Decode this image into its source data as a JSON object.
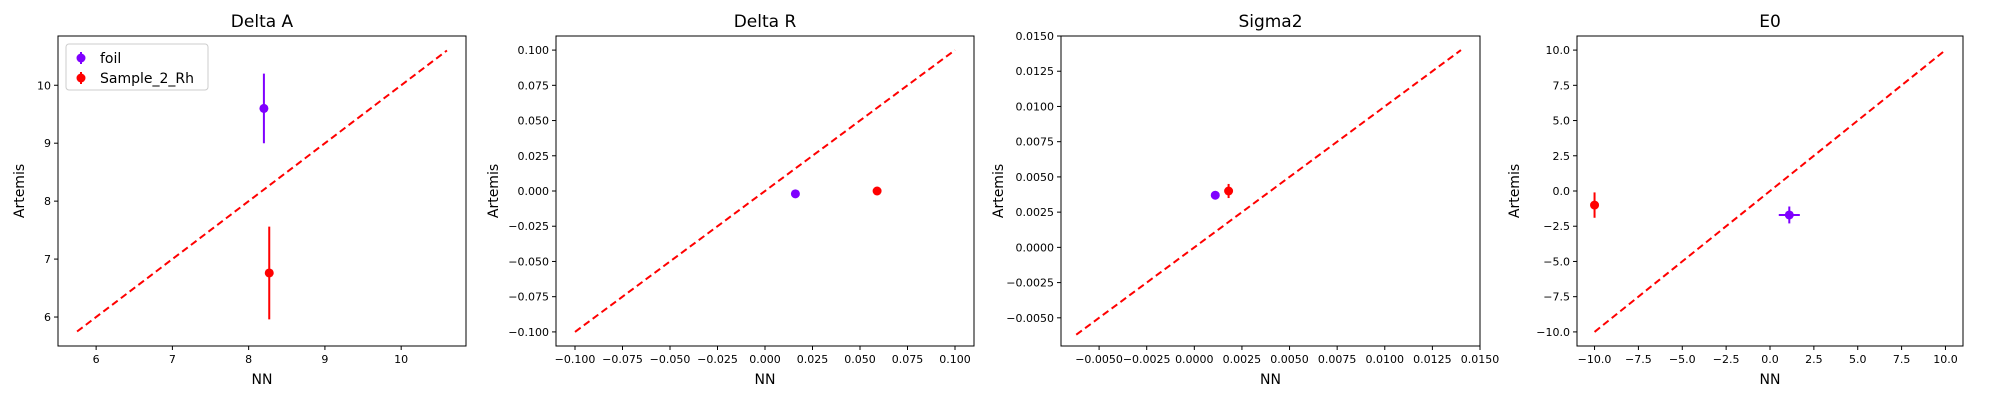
{
  "chart_data": [
    {
      "type": "scatter",
      "title": "Delta A",
      "xlabel": "NN",
      "ylabel": "Artemis",
      "xlim": [
        5.5,
        10.85
      ],
      "ylim": [
        5.5,
        10.85
      ],
      "xticks": [
        6,
        7,
        8,
        9,
        10
      ],
      "yticks": [
        6,
        7,
        8,
        9,
        10
      ],
      "tick_labels_x": [
        "6",
        "7",
        "8",
        "9",
        "10"
      ],
      "tick_labels_y": [
        "6",
        "7",
        "8",
        "9",
        "10"
      ],
      "diagonal": [
        5.75,
        10.6
      ],
      "legend": {
        "position": "top-left",
        "entries": [
          "foil",
          "Sample_2_Rh"
        ]
      },
      "series": [
        {
          "name": "foil",
          "color": "#7f00ff",
          "points": [
            {
              "x": 8.2,
              "y": 9.6,
              "xerr": 0.0,
              "yerr": 0.6
            }
          ]
        },
        {
          "name": "Sample_2_Rh",
          "color": "#ff0000",
          "points": [
            {
              "x": 8.27,
              "y": 6.76,
              "xerr": 0.0,
              "yerr": 0.8
            }
          ]
        }
      ]
    },
    {
      "type": "scatter",
      "title": "Delta R",
      "xlabel": "NN",
      "ylabel": "Artemis",
      "xlim": [
        -0.11,
        0.11
      ],
      "ylim": [
        -0.11,
        0.11
      ],
      "xticks": [
        -0.1,
        -0.075,
        -0.05,
        -0.025,
        0.0,
        0.025,
        0.05,
        0.075,
        0.1
      ],
      "yticks": [
        -0.1,
        -0.075,
        -0.05,
        -0.025,
        0.0,
        0.025,
        0.05,
        0.075,
        0.1
      ],
      "tick_labels_x": [
        "−0.100",
        "−0.075",
        "−0.050",
        "−0.025",
        "0.000",
        "0.025",
        "0.050",
        "0.075",
        "0.100"
      ],
      "tick_labels_y": [
        "−0.100",
        "−0.075",
        "−0.050",
        "−0.025",
        "0.000",
        "0.025",
        "0.050",
        "0.075",
        "0.100"
      ],
      "diagonal": [
        -0.1,
        0.1
      ],
      "series": [
        {
          "color": "#7f00ff",
          "points": [
            {
              "x": 0.016,
              "y": -0.002,
              "xerr": 0.0,
              "yerr": 0.0
            }
          ]
        },
        {
          "color": "#ff0000",
          "points": [
            {
              "x": 0.059,
              "y": 0.0,
              "xerr": 0.0015,
              "yerr": 0.002
            }
          ]
        }
      ]
    },
    {
      "type": "scatter",
      "title": "Sigma2",
      "xlabel": "NN",
      "ylabel": "Artemis",
      "xlim": [
        -0.007,
        0.015
      ],
      "ylim": [
        -0.007,
        0.015
      ],
      "xticks": [
        -0.005,
        -0.0025,
        0.0,
        0.0025,
        0.005,
        0.0075,
        0.01,
        0.0125,
        0.015
      ],
      "yticks": [
        -0.005,
        -0.0025,
        0.0,
        0.0025,
        0.005,
        0.0075,
        0.01,
        0.0125,
        0.015
      ],
      "tick_labels_x": [
        "−0.0050",
        "−0.0025",
        "0.0000",
        "0.0025",
        "0.0050",
        "0.0075",
        "0.0100",
        "0.0125",
        "0.0150"
      ],
      "tick_labels_y": [
        "−0.0050",
        "−0.0025",
        "0.0000",
        "0.0025",
        "0.0050",
        "0.0075",
        "0.0100",
        "0.0125",
        "0.0150"
      ],
      "diagonal": [
        -0.0062,
        0.014
      ],
      "series": [
        {
          "color": "#7f00ff",
          "points": [
            {
              "x": 0.0011,
              "y": 0.0037,
              "xerr": 0.0,
              "yerr": 0.0
            }
          ]
        },
        {
          "color": "#ff0000",
          "points": [
            {
              "x": 0.0018,
              "y": 0.004,
              "xerr": 0.0,
              "yerr": 0.0005
            }
          ]
        }
      ]
    },
    {
      "type": "scatter",
      "title": "E0",
      "xlabel": "NN",
      "ylabel": "Artemis",
      "xlim": [
        -11.0,
        11.0
      ],
      "ylim": [
        -11.0,
        11.0
      ],
      "xticks": [
        -10,
        -7.5,
        -5,
        -2.5,
        0,
        2.5,
        5,
        7.5,
        10
      ],
      "yticks": [
        -10,
        -7.5,
        -5,
        -2.5,
        0,
        2.5,
        5,
        7.5,
        10
      ],
      "tick_labels_x": [
        "−10.0",
        "−7.5",
        "−5.0",
        "−2.5",
        "0.0",
        "2.5",
        "5.0",
        "7.5",
        "10.0"
      ],
      "tick_labels_y": [
        "−10.0",
        "−7.5",
        "−5.0",
        "−2.5",
        "0.0",
        "2.5",
        "5.0",
        "7.5",
        "10.0"
      ],
      "diagonal": [
        -10.0,
        9.9
      ],
      "series": [
        {
          "color": "#7f00ff",
          "points": [
            {
              "x": 1.1,
              "y": -1.7,
              "xerr": 0.6,
              "yerr": 0.6
            }
          ]
        },
        {
          "color": "#ff0000",
          "points": [
            {
              "x": -10.0,
              "y": -1.0,
              "xerr": 0.0,
              "yerr": 0.9
            }
          ]
        }
      ]
    }
  ]
}
